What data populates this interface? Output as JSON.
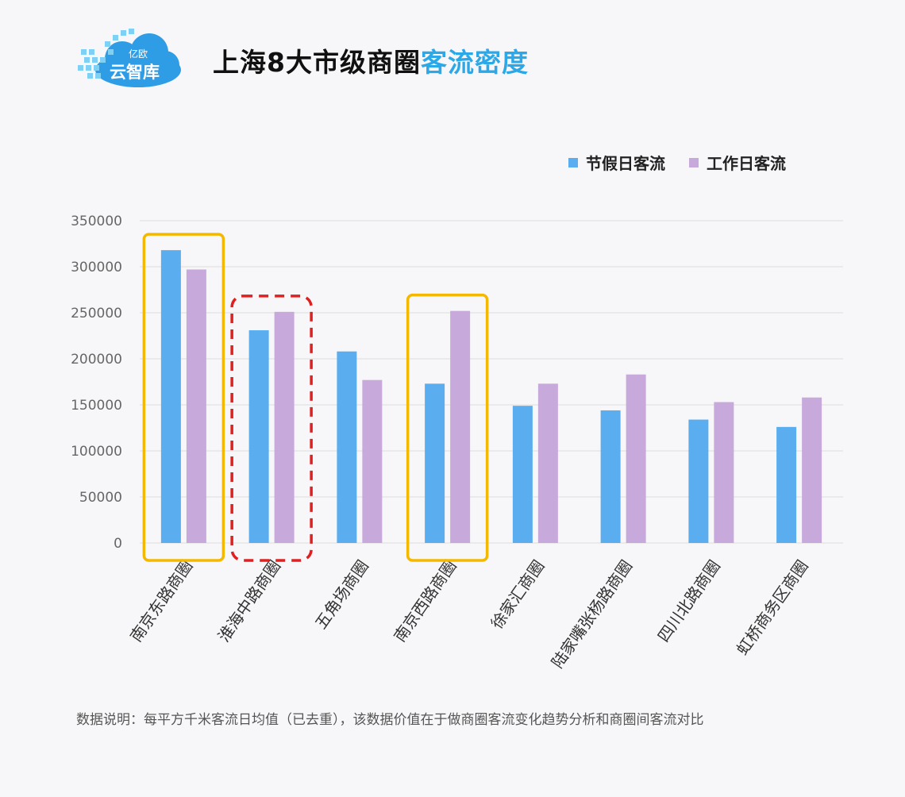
{
  "logo": {
    "small_text": "亿欧",
    "brand_text": "云智库",
    "colors": {
      "cloud": "#2f9ce6",
      "pixels": "#7fd0f5"
    }
  },
  "header": {
    "title_main": "上海8大市级商圈",
    "title_highlight": "客流密度"
  },
  "legend": {
    "holiday": {
      "label": "节假日客流",
      "color": "#5aaef0"
    },
    "workday": {
      "label": "工作日客流",
      "color": "#c8a9dc"
    }
  },
  "chart_data": {
    "type": "bar",
    "categories": [
      "南京东路商圈",
      "淮海中路商圈",
      "五角场商圈",
      "南京西路商圈",
      "徐家汇商圈",
      "陆家嘴张杨路商圈",
      "四川北路商圈",
      "虹桥商务区商圈"
    ],
    "series": [
      {
        "name": "节假日客流",
        "values": [
          318000,
          231000,
          208000,
          173000,
          149000,
          144000,
          134000,
          126000
        ],
        "color": "#5aaef0"
      },
      {
        "name": "工作日客流",
        "values": [
          297000,
          251000,
          177000,
          252000,
          173000,
          183000,
          153000,
          158000
        ],
        "color": "#c8a9dc"
      }
    ],
    "yticks": [
      "0",
      "50000",
      "100000",
      "150000",
      "200000",
      "250000",
      "300000",
      "350000"
    ],
    "ylim": [
      0,
      350000
    ],
    "grid": true,
    "legend_position": "top-right",
    "highlights": [
      {
        "category_index": 0,
        "style": "solid",
        "color": "#f5b800"
      },
      {
        "category_index": 1,
        "style": "dashed",
        "color": "#e02020"
      },
      {
        "category_index": 3,
        "style": "solid",
        "color": "#f5b800"
      }
    ]
  },
  "footnote": "数据说明：每平方千米客流日均值（已去重），该数据价值在于做商圈客流变化趋势分析和商圈间客流对比"
}
